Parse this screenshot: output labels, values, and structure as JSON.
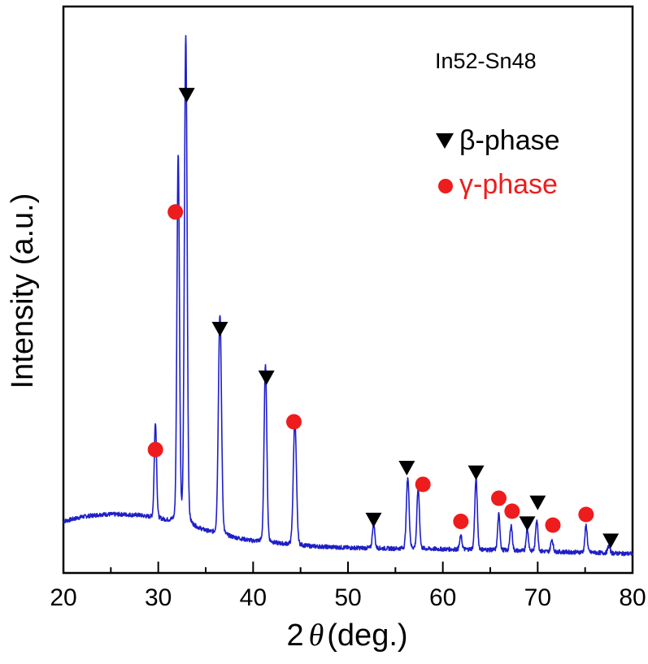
{
  "chart_data": {
    "type": "line",
    "title": "",
    "xlabel_symbol": "2",
    "xlabel_theta": "θ",
    "xlabel_unit": "(deg.)",
    "ylabel": "Intensity (a.u.)",
    "xlim": [
      20,
      80
    ],
    "ylim": [
      0,
      100
    ],
    "xticks": [
      20,
      30,
      40,
      50,
      60,
      70,
      80
    ],
    "xtick_labels": [
      "20",
      "30",
      "40",
      "50",
      "60",
      "70",
      "80"
    ],
    "grid": false,
    "sample_label": "In52-Sn48",
    "legend": [
      {
        "marker": "triangle-down",
        "label": "β-phase",
        "color": "#000000"
      },
      {
        "marker": "circle",
        "label": "γ-phase",
        "color": "#ee1c1c"
      }
    ],
    "line_color": "#1f1fc8",
    "background": [
      [
        20,
        8.5
      ],
      [
        22,
        9.5
      ],
      [
        24,
        10.0
      ],
      [
        26,
        10.0
      ],
      [
        28,
        9.8
      ],
      [
        30,
        9.0
      ],
      [
        32,
        8.0
      ],
      [
        34,
        7.0
      ],
      [
        36,
        5.7
      ],
      [
        40,
        4.2
      ],
      [
        45,
        3.2
      ],
      [
        50,
        2.8
      ],
      [
        55,
        2.6
      ],
      [
        60,
        2.5
      ],
      [
        65,
        2.3
      ],
      [
        70,
        2.0
      ],
      [
        75,
        1.8
      ],
      [
        80,
        1.5
      ]
    ],
    "peaks": [
      {
        "pos": 29.7,
        "height": 19.6,
        "width": 0.12
      },
      {
        "pos": 32.1,
        "height": 75.0,
        "width": 0.13
      },
      {
        "pos": 32.9,
        "height": 99.5,
        "width": 0.14
      },
      {
        "pos": 36.5,
        "height": 45.0,
        "width": 0.16
      },
      {
        "pos": 41.3,
        "height": 36.5,
        "width": 0.14
      },
      {
        "pos": 44.4,
        "height": 25.5,
        "width": 0.16
      },
      {
        "pos": 52.7,
        "height": 5.2,
        "width": 0.12
      },
      {
        "pos": 56.3,
        "height": 14.5,
        "width": 0.14
      },
      {
        "pos": 57.4,
        "height": 12.4,
        "width": 0.13
      },
      {
        "pos": 61.9,
        "height": 2.7,
        "width": 0.12
      },
      {
        "pos": 63.5,
        "height": 14.5,
        "width": 0.13
      },
      {
        "pos": 65.9,
        "height": 7.3,
        "width": 0.12
      },
      {
        "pos": 67.2,
        "height": 5.2,
        "width": 0.12
      },
      {
        "pos": 68.9,
        "height": 4.5,
        "width": 0.12
      },
      {
        "pos": 69.9,
        "height": 6.5,
        "width": 0.12
      },
      {
        "pos": 71.5,
        "height": 2.5,
        "width": 0.12
      },
      {
        "pos": 75.1,
        "height": 5.5,
        "width": 0.12
      },
      {
        "pos": 77.5,
        "height": 1.5,
        "width": 0.12
      }
    ],
    "beta_markers": [
      [
        33.0,
        100.5
      ],
      [
        36.5,
        50.0
      ],
      [
        41.4,
        39.5
      ],
      [
        52.7,
        8.8
      ],
      [
        56.2,
        20.0
      ],
      [
        63.5,
        19.0
      ],
      [
        68.9,
        8.0
      ],
      [
        70.0,
        12.5
      ],
      [
        77.7,
        4.3
      ]
    ],
    "gamma_markers": [
      [
        29.7,
        24.0
      ],
      [
        31.8,
        75.3
      ],
      [
        44.3,
        30.0
      ],
      [
        57.9,
        16.5
      ],
      [
        61.9,
        8.5
      ],
      [
        65.9,
        13.5
      ],
      [
        67.3,
        10.7
      ],
      [
        71.6,
        7.7
      ],
      [
        75.1,
        10.0
      ]
    ]
  }
}
